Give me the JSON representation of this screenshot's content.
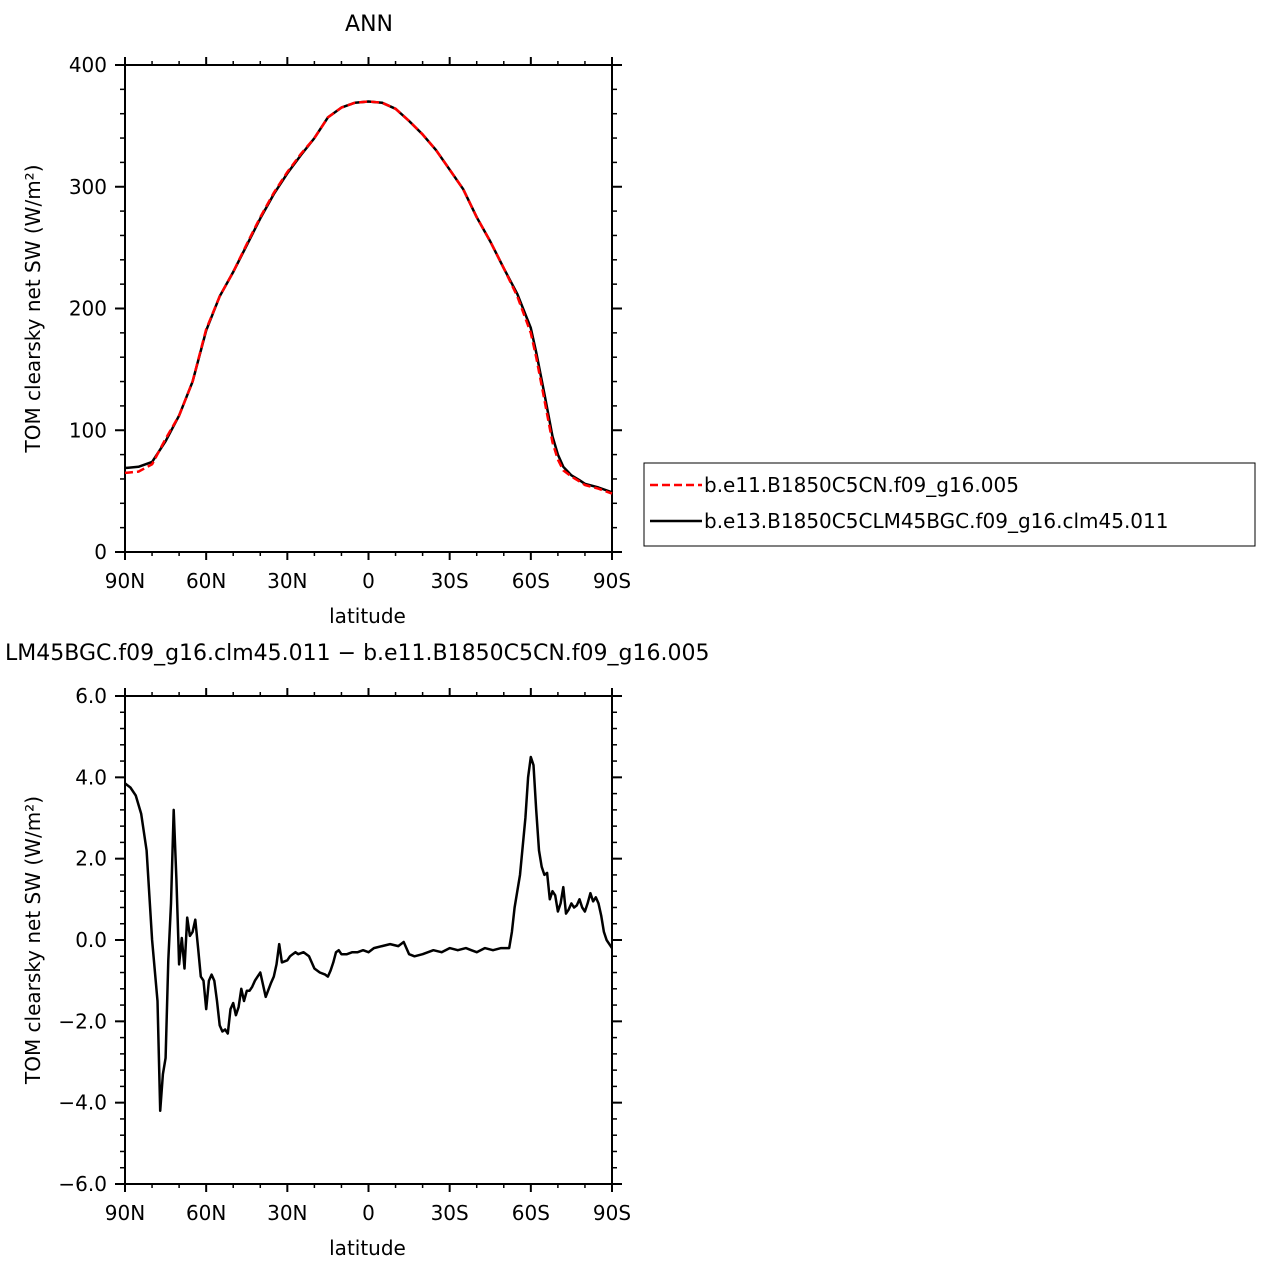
{
  "figure": {
    "top_title": "ANN",
    "bottom_title": "LM45BGC.f09_g16.clm45.011 − b.e11.B1850C5CN.f09_g16.005"
  },
  "legend": {
    "items": [
      {
        "label": "b.e11.B1850C5CN.f09_g16.005",
        "color": "#ff0000",
        "style": "dashed"
      },
      {
        "label": "b.e13.B1850C5CLM45BGC.f09_g16.clm45.011",
        "color": "#000000",
        "style": "solid"
      }
    ]
  },
  "chart_data": [
    {
      "type": "line",
      "title": "ANN",
      "xlabel": "latitude",
      "ylabel": "TOM clearsky net SW (W/m²)",
      "xlim": [
        90,
        -90
      ],
      "ylim": [
        0,
        400
      ],
      "x_ticks": [
        90,
        60,
        30,
        0,
        -30,
        -60,
        -90
      ],
      "x_tick_labels": [
        "90N",
        "60N",
        "30N",
        "0",
        "30S",
        "60S",
        "90S"
      ],
      "y_ticks": [
        0,
        100,
        200,
        300,
        400
      ],
      "y_tick_labels": [
        "0",
        "100",
        "200",
        "300",
        "400"
      ],
      "series": [
        {
          "name": "b.e11.B1850C5CN.f09_g16.005",
          "color": "#ff0000",
          "style": "dashed",
          "x": [
            90,
            85,
            80,
            75,
            70,
            65,
            60,
            55,
            50,
            45,
            40,
            35,
            30,
            25,
            20,
            15,
            10,
            5,
            0,
            -5,
            -10,
            -15,
            -20,
            -25,
            -30,
            -35,
            -40,
            -45,
            -50,
            -55,
            -60,
            -62,
            -65,
            -68,
            -70,
            -72,
            -75,
            -78,
            -80,
            -85,
            -90
          ],
          "values": [
            65,
            66,
            72,
            93,
            112,
            140,
            183,
            210,
            230,
            253,
            275,
            295,
            312,
            327,
            340,
            357,
            365,
            369,
            370,
            369,
            364,
            354,
            343,
            330,
            314,
            298,
            275,
            255,
            233,
            210,
            180,
            160,
            125,
            90,
            76,
            67,
            62,
            58,
            55,
            52,
            48
          ]
        },
        {
          "name": "b.e13.B1850C5CLM45BGC.f09_g16.clm45.011",
          "color": "#000000",
          "style": "solid",
          "x": [
            90,
            85,
            80,
            75,
            70,
            65,
            60,
            55,
            50,
            45,
            40,
            35,
            30,
            25,
            20,
            15,
            10,
            5,
            0,
            -5,
            -10,
            -15,
            -20,
            -25,
            -30,
            -35,
            -40,
            -45,
            -50,
            -55,
            -60,
            -62,
            -65,
            -68,
            -70,
            -72,
            -75,
            -78,
            -80,
            -85,
            -90
          ],
          "values": [
            69,
            70,
            74,
            91,
            112,
            140,
            182,
            210,
            230,
            252,
            274,
            294,
            311,
            326,
            340,
            357,
            365,
            369,
            370,
            369,
            364,
            354,
            343,
            330,
            314,
            298,
            275,
            255,
            233,
            212,
            184,
            164,
            130,
            95,
            80,
            70,
            63,
            59,
            56,
            53,
            49
          ]
        }
      ]
    },
    {
      "type": "line",
      "title": "LM45BGC.f09_g16.clm45.011 − b.e11.B1850C5CN.f09_g16.005",
      "xlabel": "latitude",
      "ylabel": "TOM clearsky net SW (W/m²)",
      "xlim": [
        90,
        -90
      ],
      "ylim": [
        -6,
        6
      ],
      "x_ticks": [
        90,
        60,
        30,
        0,
        -30,
        -60,
        -90
      ],
      "x_tick_labels": [
        "90N",
        "60N",
        "30N",
        "0",
        "30S",
        "60S",
        "90S"
      ],
      "y_ticks": [
        -6,
        -4,
        -2,
        0,
        2,
        4,
        6
      ],
      "y_tick_labels": [
        "−6.0",
        "−4.0",
        "−2.0",
        "0.0",
        "2.0",
        "4.0",
        "6.0"
      ],
      "series": [
        {
          "color": "#000000",
          "style": "solid",
          "x": [
            90,
            88,
            86,
            84,
            82,
            80,
            78,
            77,
            76,
            75,
            74,
            73,
            72,
            71,
            70,
            69,
            68,
            67,
            66,
            65,
            64,
            63,
            62,
            61,
            60,
            59,
            58,
            57,
            56,
            55,
            54,
            53,
            52,
            51,
            50,
            49,
            48,
            47,
            46,
            45,
            44,
            43,
            42,
            41,
            40,
            38,
            36,
            35,
            34,
            33,
            32,
            30,
            29,
            28,
            27,
            26,
            24,
            22,
            20,
            18,
            16,
            15,
            14,
            13,
            12,
            11,
            10,
            8,
            6,
            4,
            2,
            0,
            -2,
            -5,
            -8,
            -11,
            -13,
            -14,
            -15,
            -17,
            -20,
            -24,
            -27,
            -30,
            -33,
            -36,
            -38,
            -40,
            -43,
            -46,
            -49,
            -52,
            -53,
            -54,
            -55,
            -56,
            -58,
            -59,
            -60,
            -61,
            -62,
            -63,
            -64,
            -65,
            -66,
            -67,
            -68,
            -69,
            -70,
            -71,
            -72,
            -73,
            -74,
            -75,
            -76,
            -77,
            -78,
            -79,
            -80,
            -81,
            -82,
            -83,
            -84,
            -85,
            -86,
            -87,
            -88,
            -89,
            -90
          ],
          "values": [
            3.85,
            3.75,
            3.55,
            3.1,
            2.2,
            0.0,
            -1.5,
            -4.2,
            -3.3,
            -2.9,
            -0.5,
            0.9,
            3.2,
            1.5,
            -0.6,
            0.05,
            -0.7,
            0.55,
            0.1,
            0.2,
            0.5,
            -0.2,
            -0.9,
            -1.0,
            -1.7,
            -1.0,
            -0.85,
            -1.0,
            -1.5,
            -2.1,
            -2.25,
            -2.2,
            -2.3,
            -1.7,
            -1.55,
            -1.85,
            -1.65,
            -1.2,
            -1.5,
            -1.25,
            -1.25,
            -1.15,
            -1.0,
            -0.9,
            -0.8,
            -1.4,
            -1.05,
            -0.9,
            -0.6,
            -0.1,
            -0.55,
            -0.5,
            -0.4,
            -0.35,
            -0.3,
            -0.35,
            -0.3,
            -0.4,
            -0.7,
            -0.8,
            -0.85,
            -0.9,
            -0.75,
            -0.55,
            -0.3,
            -0.25,
            -0.35,
            -0.35,
            -0.3,
            -0.3,
            -0.25,
            -0.3,
            -0.2,
            -0.15,
            -0.1,
            -0.15,
            -0.05,
            -0.2,
            -0.35,
            -0.4,
            -0.35,
            -0.25,
            -0.3,
            -0.2,
            -0.25,
            -0.2,
            -0.25,
            -0.3,
            -0.2,
            -0.25,
            -0.2,
            -0.2,
            0.2,
            0.8,
            1.2,
            1.6,
            3.0,
            4.0,
            4.5,
            4.3,
            3.2,
            2.2,
            1.8,
            1.6,
            1.65,
            1.0,
            1.2,
            1.1,
            0.7,
            0.9,
            1.3,
            0.65,
            0.75,
            0.9,
            0.8,
            0.85,
            1.0,
            0.8,
            0.7,
            0.9,
            1.15,
            0.95,
            1.05,
            0.9,
            0.6,
            0.2,
            0.0,
            -0.1,
            -0.2
          ]
        }
      ]
    }
  ]
}
